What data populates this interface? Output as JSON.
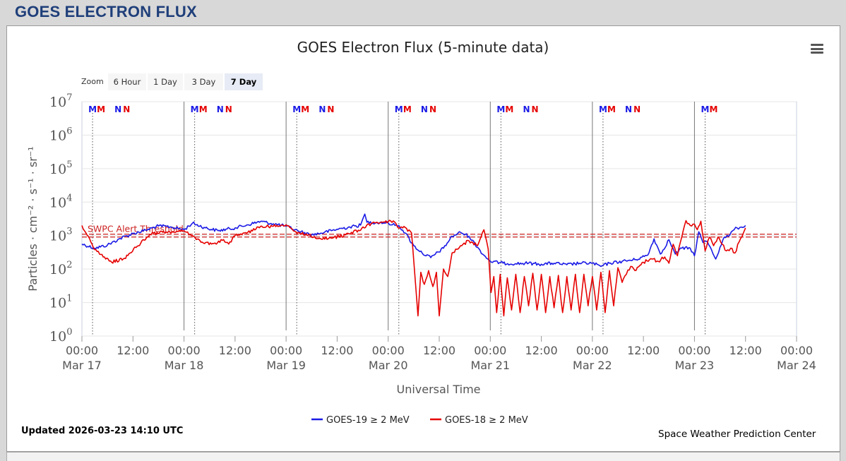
{
  "page": {
    "title": "GOES ELECTRON FLUX"
  },
  "zoom": {
    "label": "Zoom",
    "buttons": [
      {
        "label": "6 Hour",
        "active": false
      },
      {
        "label": "1 Day",
        "active": false
      },
      {
        "label": "3 Day",
        "active": false
      },
      {
        "label": "7 Day",
        "active": true
      }
    ]
  },
  "footer": {
    "updated": "Updated 2026-03-23 14:10 UTC",
    "credit": "Space Weather Prediction Center"
  },
  "colors": {
    "goes19": "#1a1ae6",
    "goes18": "#e60000",
    "threshold": "#cc2222",
    "markerM": "#1a1ae6",
    "markerMred": "#e60000"
  },
  "chart_data": {
    "type": "line",
    "title": "GOES Electron Flux (5-minute data)",
    "xlabel": "Universal Time",
    "ylabel": "Particles · cm⁻² · s⁻¹ · sr⁻¹",
    "yscale": "log",
    "xlim": [
      "2026-03-17T00:00",
      "2026-03-24T00:00"
    ],
    "ylim": [
      1,
      10000000
    ],
    "y_ticks": [
      {
        "base": "10",
        "exp": "0"
      },
      {
        "base": "10",
        "exp": "1"
      },
      {
        "base": "10",
        "exp": "2"
      },
      {
        "base": "10",
        "exp": "3"
      },
      {
        "base": "10",
        "exp": "4"
      },
      {
        "base": "10",
        "exp": "5"
      },
      {
        "base": "10",
        "exp": "6"
      },
      {
        "base": "10",
        "exp": "7"
      }
    ],
    "x_ticks": [
      {
        "time": "00:00",
        "date": "Mar 17"
      },
      {
        "time": "12:00",
        "date": ""
      },
      {
        "time": "00:00",
        "date": "Mar 18"
      },
      {
        "time": "12:00",
        "date": ""
      },
      {
        "time": "00:00",
        "date": "Mar 19"
      },
      {
        "time": "12:00",
        "date": ""
      },
      {
        "time": "00:00",
        "date": "Mar 20"
      },
      {
        "time": "12:00",
        "date": ""
      },
      {
        "time": "00:00",
        "date": "Mar 21"
      },
      {
        "time": "12:00",
        "date": ""
      },
      {
        "time": "00:00",
        "date": "Mar 22"
      },
      {
        "time": "12:00",
        "date": ""
      },
      {
        "time": "00:00",
        "date": "Mar 23"
      },
      {
        "time": "12:00",
        "date": ""
      },
      {
        "time": "00:00",
        "date": "Mar 24"
      }
    ],
    "threshold": {
      "label": "SWPC Alert Threshold",
      "value": 1000
    },
    "legend_position": "bottom-center",
    "grid": true,
    "series": [
      {
        "name": "GOES-19 ≥ 2 MeV",
        "color": "#1a1ae6",
        "points": [
          [
            "2026-03-17T00:00",
            560
          ],
          [
            "2026-03-17T03:00",
            420
          ],
          [
            "2026-03-17T06:00",
            520
          ],
          [
            "2026-03-17T09:00",
            820
          ],
          [
            "2026-03-17T12:00",
            1150
          ],
          [
            "2026-03-17T15:00",
            1450
          ],
          [
            "2026-03-17T18:00",
            1950
          ],
          [
            "2026-03-17T21:00",
            1800
          ],
          [
            "2026-03-18T00:00",
            1500
          ],
          [
            "2026-03-18T02:00",
            2350
          ],
          [
            "2026-03-18T05:00",
            1700
          ],
          [
            "2026-03-18T08:00",
            1400
          ],
          [
            "2026-03-18T12:00",
            1700
          ],
          [
            "2026-03-18T15:00",
            2100
          ],
          [
            "2026-03-18T18:00",
            2650
          ],
          [
            "2026-03-18T21:00",
            2250
          ],
          [
            "2026-03-19T00:00",
            1900
          ],
          [
            "2026-03-19T03:00",
            1350
          ],
          [
            "2026-03-19T06:00",
            1050
          ],
          [
            "2026-03-19T09:00",
            1250
          ],
          [
            "2026-03-19T12:00",
            1550
          ],
          [
            "2026-03-19T15:00",
            1800
          ],
          [
            "2026-03-19T17:30",
            2050
          ],
          [
            "2026-03-19T18:30",
            4400
          ],
          [
            "2026-03-19T19:00",
            2500
          ],
          [
            "2026-03-19T22:00",
            2450
          ],
          [
            "2026-03-20T00:00",
            2400
          ],
          [
            "2026-03-20T01:00",
            2100
          ],
          [
            "2026-03-20T02:30",
            2000
          ],
          [
            "2026-03-20T04:00",
            1200
          ],
          [
            "2026-03-20T06:00",
            500
          ],
          [
            "2026-03-20T08:00",
            300
          ],
          [
            "2026-03-20T10:00",
            220
          ],
          [
            "2026-03-20T13:00",
            420
          ],
          [
            "2026-03-20T15:00",
            950
          ],
          [
            "2026-03-20T17:00",
            1250
          ],
          [
            "2026-03-20T19:00",
            950
          ],
          [
            "2026-03-20T21:00",
            450
          ],
          [
            "2026-03-20T22:30",
            260
          ],
          [
            "2026-03-21T00:00",
            170
          ],
          [
            "2026-03-21T03:00",
            150
          ],
          [
            "2026-03-21T06:00",
            145
          ],
          [
            "2026-03-21T09:00",
            150
          ],
          [
            "2026-03-21T12:00",
            140
          ],
          [
            "2026-03-21T15:00",
            150
          ],
          [
            "2026-03-21T18:00",
            135
          ],
          [
            "2026-03-21T21:00",
            150
          ],
          [
            "2026-03-22T00:00",
            150
          ],
          [
            "2026-03-22T02:00",
            120
          ],
          [
            "2026-03-22T04:00",
            150
          ],
          [
            "2026-03-22T07:00",
            170
          ],
          [
            "2026-03-22T10:00",
            190
          ],
          [
            "2026-03-22T13:00",
            260
          ],
          [
            "2026-03-22T14:30",
            800
          ],
          [
            "2026-03-22T16:00",
            280
          ],
          [
            "2026-03-22T18:00",
            750
          ],
          [
            "2026-03-22T19:30",
            280
          ],
          [
            "2026-03-22T21:00",
            420
          ],
          [
            "2026-03-22T23:00",
            420
          ],
          [
            "2026-03-23T00:00",
            250
          ],
          [
            "2026-03-23T01:00",
            1300
          ],
          [
            "2026-03-23T02:00",
            620
          ],
          [
            "2026-03-23T03:00",
            680
          ],
          [
            "2026-03-23T04:00",
            380
          ],
          [
            "2026-03-23T05:00",
            200
          ],
          [
            "2026-03-23T06:00",
            450
          ],
          [
            "2026-03-23T07:00",
            900
          ],
          [
            "2026-03-23T08:00",
            950
          ],
          [
            "2026-03-23T09:00",
            1400
          ],
          [
            "2026-03-23T10:00",
            1700
          ],
          [
            "2026-03-23T11:00",
            1800
          ],
          [
            "2026-03-23T12:00",
            2000
          ]
        ]
      },
      {
        "name": "GOES-18 ≥ 2 MeV",
        "color": "#e60000",
        "points": [
          [
            "2026-03-17T00:00",
            2000
          ],
          [
            "2026-03-17T01:30",
            950
          ],
          [
            "2026-03-17T03:00",
            380
          ],
          [
            "2026-03-17T05:00",
            230
          ],
          [
            "2026-03-17T07:00",
            160
          ],
          [
            "2026-03-17T10:00",
            210
          ],
          [
            "2026-03-17T13:00",
            480
          ],
          [
            "2026-03-17T16:00",
            1100
          ],
          [
            "2026-03-17T19:00",
            1250
          ],
          [
            "2026-03-17T22:00",
            1250
          ],
          [
            "2026-03-18T00:00",
            1400
          ],
          [
            "2026-03-18T02:00",
            1000
          ],
          [
            "2026-03-18T04:00",
            630
          ],
          [
            "2026-03-18T07:00",
            580
          ],
          [
            "2026-03-18T09:00",
            720
          ],
          [
            "2026-03-18T10:30",
            560
          ],
          [
            "2026-03-18T12:00",
            1000
          ],
          [
            "2026-03-18T15:00",
            1250
          ],
          [
            "2026-03-18T18:00",
            1900
          ],
          [
            "2026-03-18T21:00",
            1900
          ],
          [
            "2026-03-19T00:00",
            2100
          ],
          [
            "2026-03-19T02:00",
            1350
          ],
          [
            "2026-03-19T05:00",
            1000
          ],
          [
            "2026-03-19T08:00",
            830
          ],
          [
            "2026-03-19T11:00",
            850
          ],
          [
            "2026-03-19T14:00",
            1050
          ],
          [
            "2026-03-19T17:00",
            1450
          ],
          [
            "2026-03-19T20:00",
            2300
          ],
          [
            "2026-03-20T00:00",
            2600
          ],
          [
            "2026-03-20T01:30",
            2550
          ],
          [
            "2026-03-20T02:30",
            1650
          ],
          [
            "2026-03-20T04:00",
            1750
          ],
          [
            "2026-03-20T05:30",
            1200
          ],
          [
            "2026-03-20T07:00",
            4
          ],
          [
            "2026-03-20T07:40",
            80
          ],
          [
            "2026-03-20T08:30",
            35
          ],
          [
            "2026-03-20T09:30",
            90
          ],
          [
            "2026-03-20T10:30",
            30
          ],
          [
            "2026-03-20T11:20",
            80
          ],
          [
            "2026-03-20T12:00",
            4
          ],
          [
            "2026-03-20T13:00",
            100
          ],
          [
            "2026-03-20T14:00",
            60
          ],
          [
            "2026-03-20T15:00",
            300
          ],
          [
            "2026-03-20T17:00",
            500
          ],
          [
            "2026-03-20T19:00",
            700
          ],
          [
            "2026-03-20T21:00",
            500
          ],
          [
            "2026-03-20T22:30",
            1500
          ],
          [
            "2026-03-20T23:30",
            400
          ],
          [
            "2026-03-21T00:10",
            20
          ],
          [
            "2026-03-21T00:50",
            60
          ],
          [
            "2026-03-21T01:30",
            5
          ],
          [
            "2026-03-21T02:20",
            70
          ],
          [
            "2026-03-21T03:10",
            4
          ],
          [
            "2026-03-21T04:00",
            55
          ],
          [
            "2026-03-21T05:00",
            6
          ],
          [
            "2026-03-21T06:00",
            70
          ],
          [
            "2026-03-21T07:00",
            5
          ],
          [
            "2026-03-21T08:00",
            60
          ],
          [
            "2026-03-21T09:00",
            8
          ],
          [
            "2026-03-21T10:00",
            75
          ],
          [
            "2026-03-21T11:00",
            6
          ],
          [
            "2026-03-21T12:00",
            70
          ],
          [
            "2026-03-21T13:00",
            5
          ],
          [
            "2026-03-21T14:00",
            60
          ],
          [
            "2026-03-21T15:00",
            7
          ],
          [
            "2026-03-21T16:00",
            65
          ],
          [
            "2026-03-21T17:00",
            5
          ],
          [
            "2026-03-21T18:00",
            60
          ],
          [
            "2026-03-21T19:00",
            6
          ],
          [
            "2026-03-21T20:00",
            70
          ],
          [
            "2026-03-21T21:00",
            5
          ],
          [
            "2026-03-21T22:00",
            70
          ],
          [
            "2026-03-21T23:00",
            8
          ],
          [
            "2026-03-22T00:00",
            60
          ],
          [
            "2026-03-22T01:00",
            6
          ],
          [
            "2026-03-22T02:00",
            80
          ],
          [
            "2026-03-22T03:00",
            5
          ],
          [
            "2026-03-22T04:00",
            90
          ],
          [
            "2026-03-22T05:00",
            8
          ],
          [
            "2026-03-22T06:00",
            110
          ],
          [
            "2026-03-22T07:00",
            40
          ],
          [
            "2026-03-22T08:00",
            70
          ],
          [
            "2026-03-22T09:00",
            120
          ],
          [
            "2026-03-22T10:00",
            90
          ],
          [
            "2026-03-22T12:00",
            160
          ],
          [
            "2026-03-22T14:00",
            200
          ],
          [
            "2026-03-22T15:30",
            170
          ],
          [
            "2026-03-22T17:00",
            230
          ],
          [
            "2026-03-22T18:00",
            150
          ],
          [
            "2026-03-22T19:00",
            550
          ],
          [
            "2026-03-22T20:00",
            250
          ],
          [
            "2026-03-22T21:00",
            900
          ],
          [
            "2026-03-22T22:00",
            2800
          ],
          [
            "2026-03-22T23:00",
            2000
          ],
          [
            "2026-03-23T00:00",
            2200
          ],
          [
            "2026-03-23T00:40",
            1500
          ],
          [
            "2026-03-23T01:30",
            2700
          ],
          [
            "2026-03-23T02:30",
            350
          ],
          [
            "2026-03-23T03:30",
            900
          ],
          [
            "2026-03-23T04:30",
            500
          ],
          [
            "2026-03-23T05:30",
            900
          ],
          [
            "2026-03-23T06:30",
            550
          ],
          [
            "2026-03-23T07:30",
            350
          ],
          [
            "2026-03-23T08:30",
            420
          ],
          [
            "2026-03-23T09:30",
            300
          ],
          [
            "2026-03-23T10:30",
            650
          ],
          [
            "2026-03-23T11:30",
            1200
          ],
          [
            "2026-03-23T12:00",
            1700
          ]
        ]
      }
    ],
    "event_markers": [
      {
        "time": "2026-03-17T02:30",
        "label": "M",
        "color": "#1a1ae6",
        "line": true
      },
      {
        "time": "2026-03-17T04:30",
        "label": "M",
        "color": "#e60000",
        "line": false
      },
      {
        "time": "2026-03-17T08:30",
        "label": "N",
        "color": "#1a1ae6",
        "line": false
      },
      {
        "time": "2026-03-17T10:30",
        "label": "N",
        "color": "#e60000",
        "line": false
      },
      {
        "time": "2026-03-18T02:30",
        "label": "M",
        "color": "#1a1ae6",
        "line": true
      },
      {
        "time": "2026-03-18T04:30",
        "label": "M",
        "color": "#e60000",
        "line": false
      },
      {
        "time": "2026-03-18T08:30",
        "label": "N",
        "color": "#1a1ae6",
        "line": false
      },
      {
        "time": "2026-03-18T10:30",
        "label": "N",
        "color": "#e60000",
        "line": false
      },
      {
        "time": "2026-03-19T02:30",
        "label": "M",
        "color": "#1a1ae6",
        "line": true
      },
      {
        "time": "2026-03-19T04:30",
        "label": "M",
        "color": "#e60000",
        "line": false
      },
      {
        "time": "2026-03-19T08:30",
        "label": "N",
        "color": "#1a1ae6",
        "line": false
      },
      {
        "time": "2026-03-19T10:30",
        "label": "N",
        "color": "#e60000",
        "line": false
      },
      {
        "time": "2026-03-20T02:30",
        "label": "M",
        "color": "#1a1ae6",
        "line": true
      },
      {
        "time": "2026-03-20T04:30",
        "label": "M",
        "color": "#e60000",
        "line": false
      },
      {
        "time": "2026-03-20T08:30",
        "label": "N",
        "color": "#1a1ae6",
        "line": false
      },
      {
        "time": "2026-03-20T10:30",
        "label": "N",
        "color": "#e60000",
        "line": false
      },
      {
        "time": "2026-03-21T02:30",
        "label": "M",
        "color": "#1a1ae6",
        "line": true
      },
      {
        "time": "2026-03-21T04:30",
        "label": "M",
        "color": "#e60000",
        "line": false
      },
      {
        "time": "2026-03-21T08:30",
        "label": "N",
        "color": "#1a1ae6",
        "line": false
      },
      {
        "time": "2026-03-21T10:30",
        "label": "N",
        "color": "#e60000",
        "line": false
      },
      {
        "time": "2026-03-22T02:30",
        "label": "M",
        "color": "#1a1ae6",
        "line": true
      },
      {
        "time": "2026-03-22T04:30",
        "label": "M",
        "color": "#e60000",
        "line": false
      },
      {
        "time": "2026-03-22T08:30",
        "label": "N",
        "color": "#1a1ae6",
        "line": false
      },
      {
        "time": "2026-03-22T10:30",
        "label": "N",
        "color": "#e60000",
        "line": false
      },
      {
        "time": "2026-03-23T02:30",
        "label": "M",
        "color": "#1a1ae6",
        "line": true
      },
      {
        "time": "2026-03-23T04:30",
        "label": "M",
        "color": "#e60000",
        "line": false
      }
    ]
  }
}
